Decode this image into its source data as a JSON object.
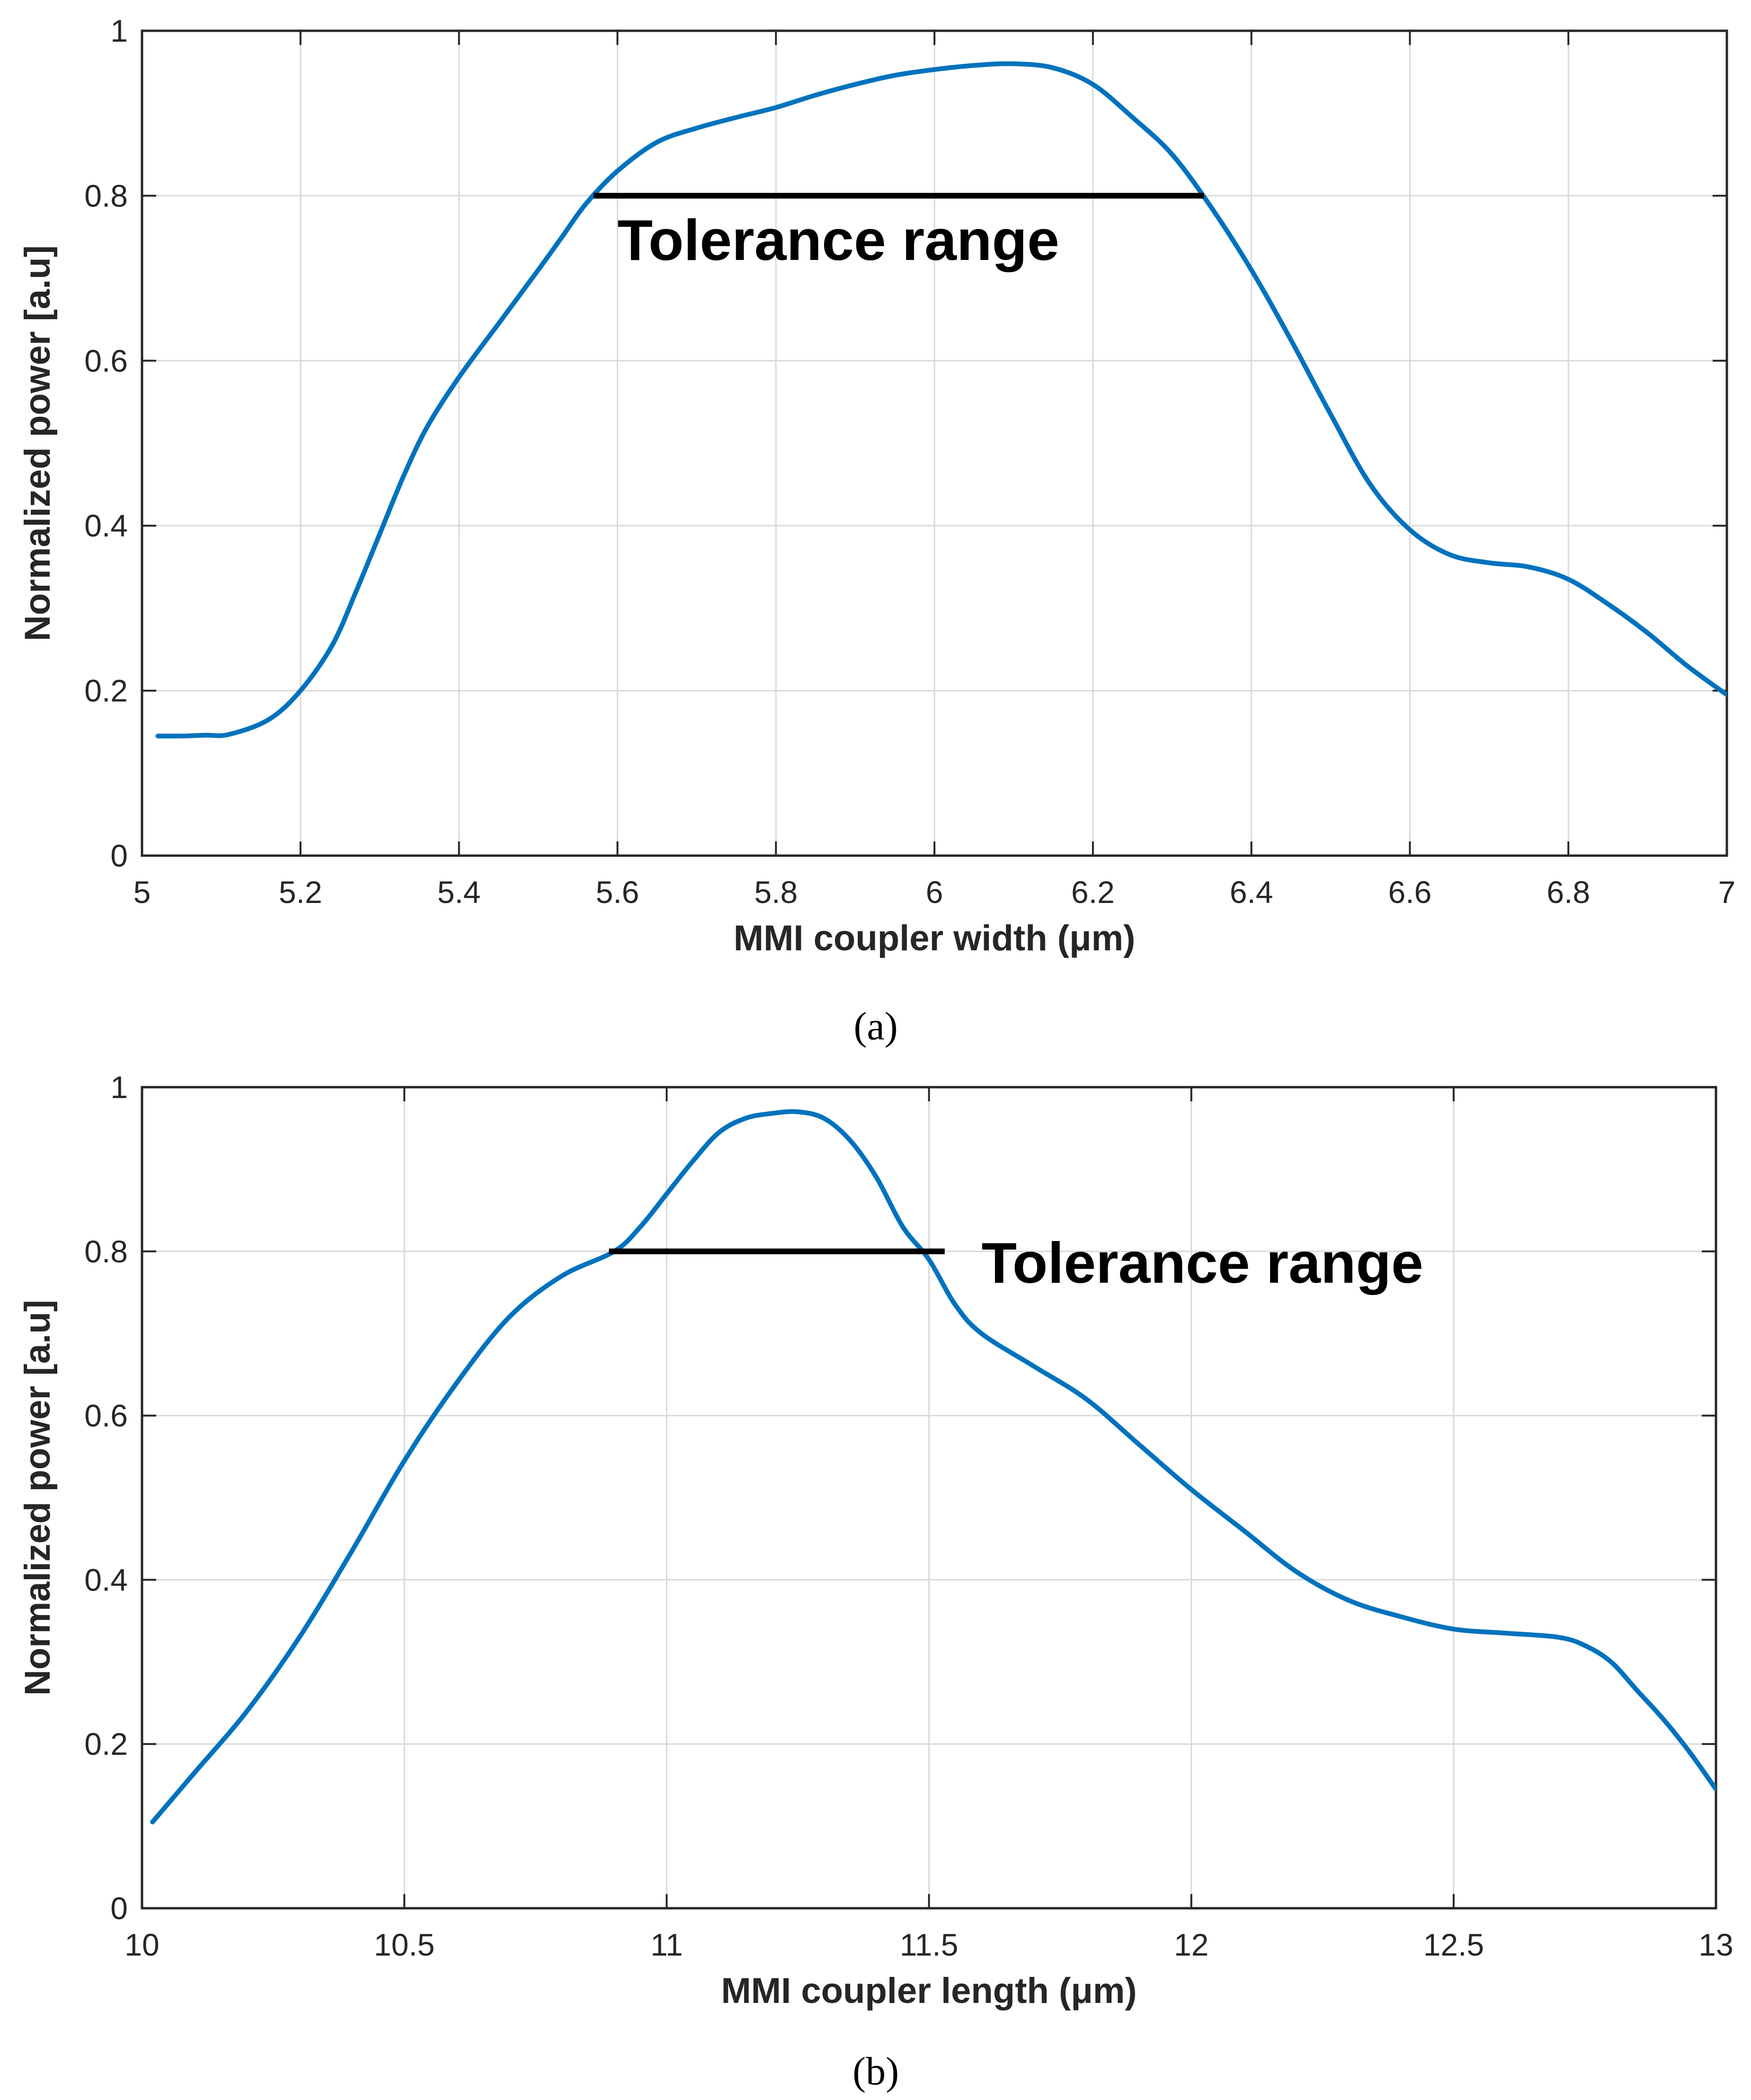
{
  "colors": {
    "line": "#0072BD",
    "grid": "#d9d9d9",
    "axis": "#262626",
    "marker": "#000000"
  },
  "chart_data": [
    {
      "type": "line",
      "caption": "(a)",
      "xlabel": "MMI coupler width (μm)",
      "ylabel": "Normalized power [a.u]",
      "xlim": [
        5,
        7
      ],
      "ylim": [
        0,
        1
      ],
      "xticks": [
        5,
        5.2,
        5.4,
        5.6,
        5.8,
        6,
        6.2,
        6.4,
        6.6,
        6.8,
        7
      ],
      "xtick_labels": [
        "5",
        "5.2",
        "5.4",
        "5.6",
        "5.8",
        "6",
        "6.2",
        "6.4",
        "6.6",
        "6.8",
        "7"
      ],
      "yticks": [
        0,
        0.2,
        0.4,
        0.6,
        0.8,
        1
      ],
      "ytick_labels": [
        "0",
        "0.2",
        "0.4",
        "0.6",
        "0.8",
        "1"
      ],
      "grid": true,
      "series": [
        {
          "name": "Normalized power",
          "x": [
            5.02,
            5.05,
            5.08,
            5.11,
            5.16,
            5.2,
            5.24,
            5.27,
            5.3,
            5.33,
            5.36,
            5.4,
            5.45,
            5.5,
            5.53,
            5.56,
            5.6,
            5.65,
            5.7,
            5.75,
            5.8,
            5.85,
            5.9,
            5.95,
            6.0,
            6.05,
            6.1,
            6.15,
            6.2,
            6.25,
            6.3,
            6.35,
            6.4,
            6.45,
            6.5,
            6.55,
            6.6,
            6.65,
            6.7,
            6.75,
            6.8,
            6.85,
            6.9,
            6.95,
            7.0
          ],
          "y": [
            0.145,
            0.145,
            0.146,
            0.147,
            0.165,
            0.2,
            0.255,
            0.32,
            0.39,
            0.46,
            0.52,
            0.58,
            0.645,
            0.71,
            0.75,
            0.79,
            0.83,
            0.865,
            0.882,
            0.895,
            0.907,
            0.922,
            0.935,
            0.946,
            0.953,
            0.958,
            0.96,
            0.955,
            0.935,
            0.895,
            0.85,
            0.785,
            0.71,
            0.625,
            0.535,
            0.45,
            0.395,
            0.365,
            0.355,
            0.35,
            0.335,
            0.305,
            0.27,
            0.23,
            0.195
          ]
        }
      ],
      "annotation": {
        "text": "Tolerance range",
        "y": 0.8,
        "x_start": 5.57,
        "x_end": 6.34,
        "text_x": 5.6,
        "text_y": 0.745
      }
    },
    {
      "type": "line",
      "caption": "(b)",
      "xlabel": "MMI coupler length (μm)",
      "ylabel": "Normalized power [a.u]",
      "xlim": [
        10,
        13
      ],
      "ylim": [
        0,
        1
      ],
      "xticks": [
        10,
        10.5,
        11,
        11.5,
        12,
        12.5,
        13
      ],
      "xtick_labels": [
        "10",
        "10.5",
        "11",
        "11.5",
        "12",
        "12.5",
        "13"
      ],
      "yticks": [
        0,
        0.2,
        0.4,
        0.6,
        0.8,
        1
      ],
      "ytick_labels": [
        "0",
        "0.2",
        "0.4",
        "0.6",
        "0.8",
        "1"
      ],
      "grid": true,
      "series": [
        {
          "name": "Normalized power",
          "x": [
            10.02,
            10.1,
            10.2,
            10.3,
            10.4,
            10.5,
            10.6,
            10.7,
            10.8,
            10.9,
            10.95,
            11.0,
            11.05,
            11.1,
            11.15,
            11.2,
            11.25,
            11.3,
            11.35,
            11.4,
            11.45,
            11.5,
            11.55,
            11.6,
            11.7,
            11.8,
            11.9,
            12.0,
            12.1,
            12.2,
            12.3,
            12.4,
            12.5,
            12.6,
            12.7,
            12.75,
            12.8,
            12.85,
            12.9,
            12.95,
            13.0
          ],
          "y": [
            0.105,
            0.165,
            0.24,
            0.33,
            0.435,
            0.545,
            0.64,
            0.72,
            0.77,
            0.8,
            0.83,
            0.87,
            0.91,
            0.945,
            0.962,
            0.968,
            0.97,
            0.962,
            0.935,
            0.89,
            0.83,
            0.79,
            0.735,
            0.7,
            0.66,
            0.62,
            0.565,
            0.51,
            0.46,
            0.41,
            0.375,
            0.355,
            0.34,
            0.335,
            0.33,
            0.32,
            0.3,
            0.265,
            0.23,
            0.19,
            0.145
          ]
        }
      ],
      "annotation": {
        "text": "Tolerance range",
        "y": 0.8,
        "x_start": 10.89,
        "x_end": 11.53,
        "text_x": 11.6,
        "text_y": 0.785
      }
    }
  ]
}
